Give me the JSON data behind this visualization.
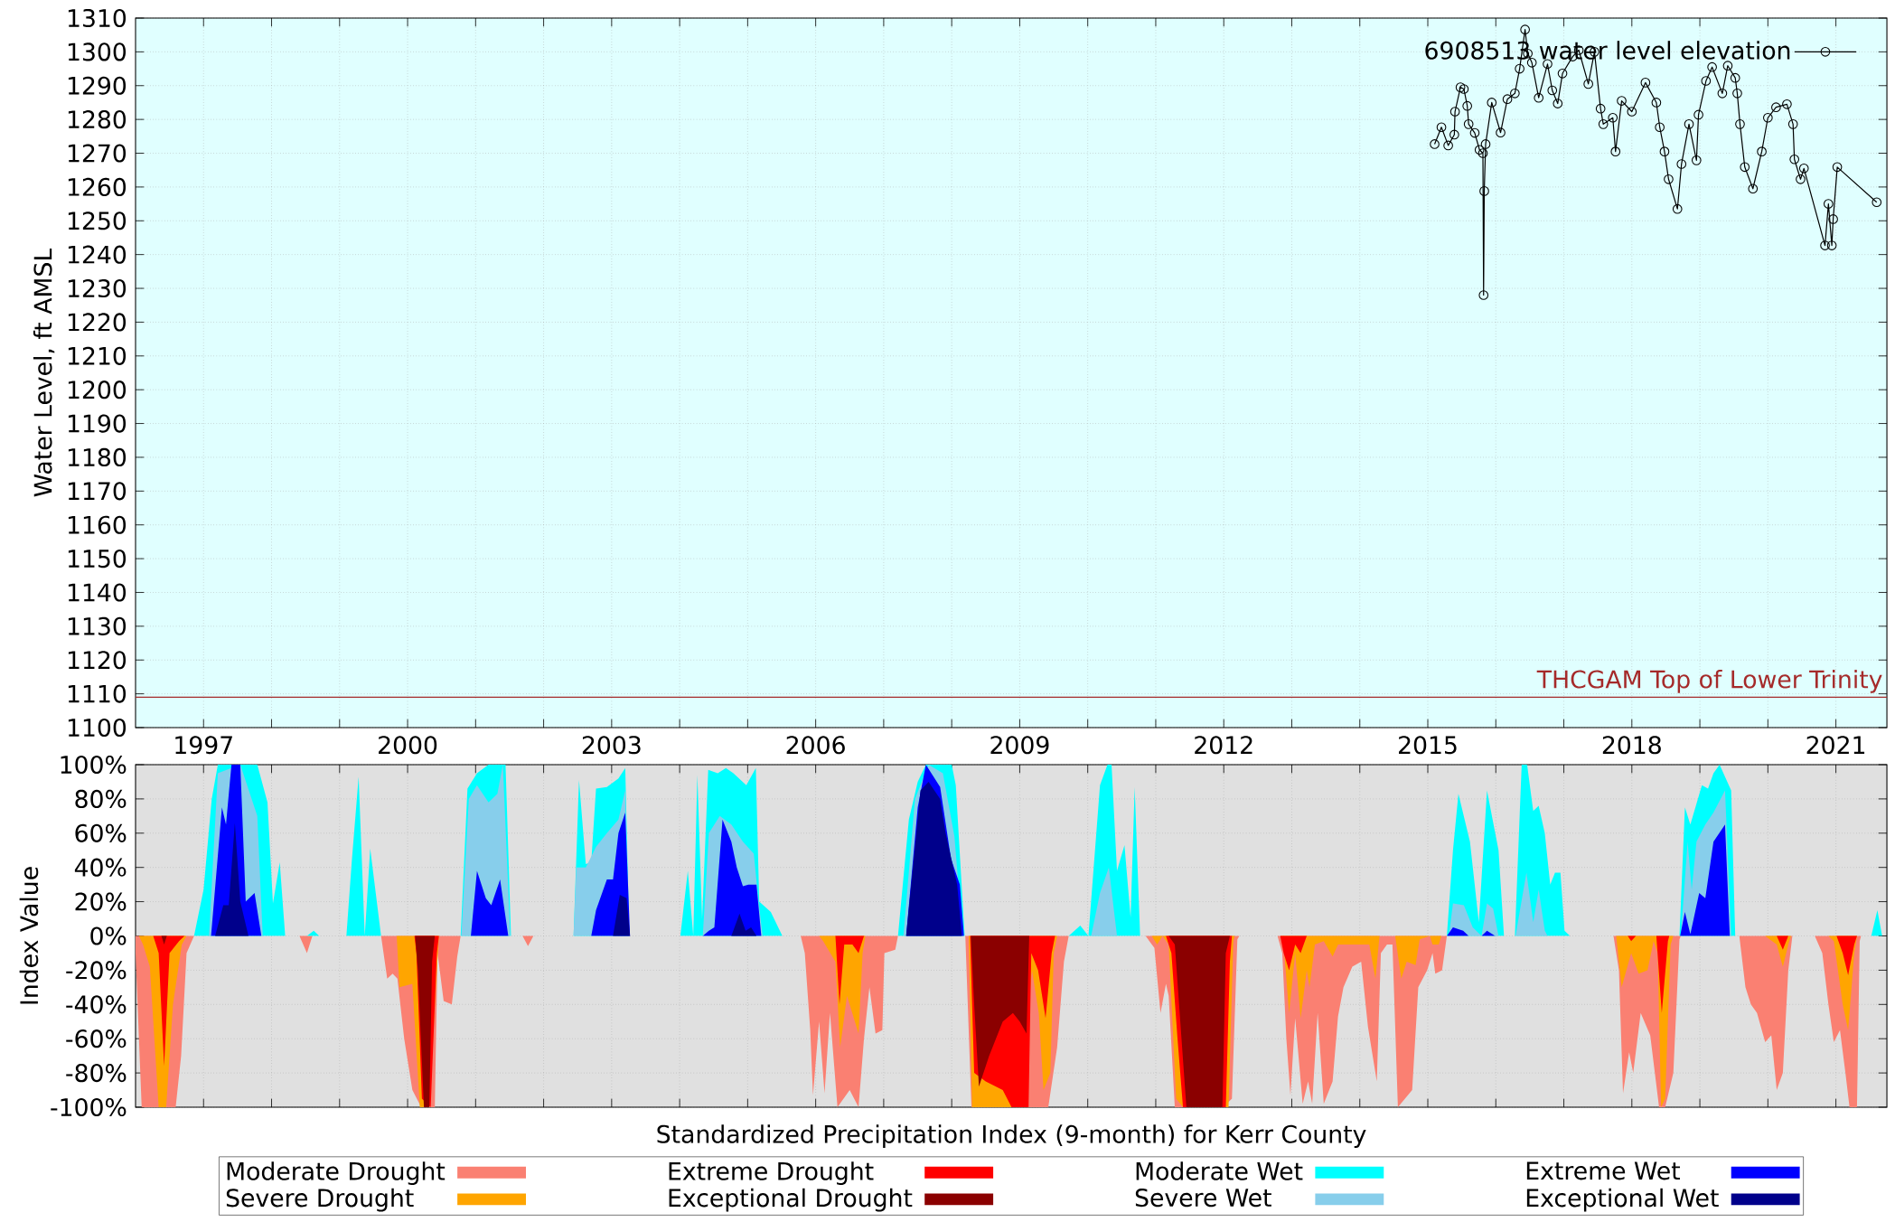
{
  "chart_data": [
    {
      "type": "line",
      "ylabel": "Water Level, ft AMSL",
      "xlim": [
        1996.0,
        2021.75
      ],
      "ylim": [
        1100,
        1310
      ],
      "xticks": [
        1997,
        {
          "value": 1998,
          "label": null
        },
        {
          "value": 1999,
          "label": null
        },
        2000,
        {
          "value": 2001,
          "label": null
        },
        {
          "value": 2002,
          "label": null
        },
        2003,
        {
          "value": 2004,
          "label": null
        },
        {
          "value": 2005,
          "label": null
        },
        2006,
        {
          "value": 2007,
          "label": null
        },
        {
          "value": 2008,
          "label": null
        },
        2009,
        {
          "value": 2010,
          "label": null
        },
        {
          "value": 2011,
          "label": null
        },
        2012,
        {
          "value": 2013,
          "label": null
        },
        {
          "value": 2014,
          "label": null
        },
        2015,
        {
          "value": 2016,
          "label": null
        },
        {
          "value": 2017,
          "label": null
        },
        2018,
        {
          "value": 2019,
          "label": null
        },
        {
          "value": 2020,
          "label": null
        },
        2021
      ],
      "yticks": [
        1100,
        1110,
        1120,
        1130,
        1140,
        1150,
        1160,
        1170,
        1180,
        1190,
        1200,
        1210,
        1220,
        1230,
        1240,
        1250,
        1260,
        1270,
        1280,
        1290,
        1300,
        1310
      ],
      "grid": true,
      "legend": "top right",
      "marker": "circle",
      "line_style": "solid",
      "ref_lines": [
        {
          "axis": "y",
          "value": 1109,
          "label": "THCGAM Top of Lower Trinity",
          "color": "#a52a2a"
        }
      ],
      "series": [
        {
          "name": "6908513 water level elevation",
          "color": "#000000",
          "x": [
            2015.1,
            2015.2,
            2015.3,
            2015.39,
            2015.4,
            2015.48,
            2015.53,
            2015.58,
            2015.6,
            2015.69,
            2015.76,
            2015.81,
            2015.82,
            2015.83,
            2015.85,
            2015.94,
            2016.07,
            2016.17,
            2016.28,
            2016.35,
            2016.43,
            2016.47,
            2016.53,
            2016.63,
            2016.76,
            2016.83,
            2016.91,
            2016.98,
            2017.13,
            2017.22,
            2017.36,
            2017.45,
            2017.54,
            2017.58,
            2017.72,
            2017.76,
            2017.85,
            2018.0,
            2018.2,
            2018.36,
            2018.41,
            2018.48,
            2018.54,
            2018.67,
            2018.73,
            2018.84,
            2018.95,
            2018.98,
            2019.09,
            2019.18,
            2019.33,
            2019.41,
            2019.52,
            2019.55,
            2019.59,
            2019.66,
            2019.78,
            2019.91,
            2020.0,
            2020.12,
            2020.28,
            2020.37,
            2020.39,
            2020.48,
            2020.53,
            2020.84,
            2020.89,
            2020.94,
            2020.96,
            2021.02,
            2021.6
          ],
          "values": [
            1272.7,
            1277.7,
            1272.3,
            1275.5,
            1282.3,
            1289.5,
            1289,
            1284,
            1278.6,
            1276,
            1271,
            1270,
            1228,
            1258.8,
            1272.7,
            1285,
            1276.1,
            1286,
            1287.7,
            1295,
            1306.6,
            1299.5,
            1296.8,
            1286.4,
            1296.4,
            1288.6,
            1284.7,
            1293.6,
            1298.6,
            1300.5,
            1290.5,
            1300,
            1283.2,
            1278.6,
            1280.5,
            1270.5,
            1285.5,
            1282.3,
            1290.9,
            1285,
            1277.7,
            1270.5,
            1262.3,
            1253.5,
            1266.8,
            1278.6,
            1267.9,
            1281.4,
            1291.4,
            1295.5,
            1287.7,
            1295.9,
            1292.3,
            1287.7,
            1278.6,
            1265.9,
            1259.5,
            1270.5,
            1280.5,
            1283.6,
            1284.5,
            1278.6,
            1268.2,
            1262.3,
            1265.5,
            1242.7,
            1255,
            1242.7,
            1250.5,
            1265.9,
            1255.5
          ]
        }
      ]
    },
    {
      "type": "area",
      "xlabel": "Standardized Precipitation Index (9-month) for Kerr County",
      "ylabel": "Index Value",
      "xlim": [
        1996.0,
        2021.75
      ],
      "ylim": [
        -100,
        100
      ],
      "xticks": [
        1997,
        {
          "value": 1998,
          "label": null
        },
        {
          "value": 1999,
          "label": null
        },
        2000,
        {
          "value": 2001,
          "label": null
        },
        {
          "value": 2002,
          "label": null
        },
        2003,
        {
          "value": 2004,
          "label": null
        },
        {
          "value": 2005,
          "label": null
        },
        2006,
        {
          "value": 2007,
          "label": null
        },
        {
          "value": 2008,
          "label": null
        },
        2009,
        {
          "value": 2010,
          "label": null
        },
        {
          "value": 2011,
          "label": null
        },
        2012,
        {
          "value": 2013,
          "label": null
        },
        {
          "value": 2014,
          "label": null
        },
        2015,
        {
          "value": 2016,
          "label": null
        },
        {
          "value": 2017,
          "label": null
        },
        2018,
        {
          "value": 2019,
          "label": null
        },
        {
          "value": 2020,
          "label": null
        },
        2021
      ],
      "yticks": [
        {
          "value": -100,
          "label": "-100%"
        },
        {
          "value": -80,
          "label": "-80%"
        },
        {
          "value": -60,
          "label": "-60%"
        },
        {
          "value": -40,
          "label": "-40%"
        },
        {
          "value": -20,
          "label": "-20%"
        },
        {
          "value": 0,
          "label": "0%"
        },
        {
          "value": 20,
          "label": "20%"
        },
        {
          "value": 40,
          "label": "40%"
        },
        {
          "value": 60,
          "label": "60%"
        },
        {
          "value": 80,
          "label": "80%"
        },
        {
          "value": 100,
          "label": "100%"
        }
      ],
      "tick_labels": "y",
      "grid": true,
      "legend": "bottom",
      "series": [
        {
          "name": "Moderate Drought",
          "color": "#fa8072",
          "x": [
            1996.0,
            1996.09,
            1996.59,
            1996.67,
            1996.75,
            1996.86,
            1998.41,
            1998.52,
            1998.6,
            1999.61,
            1999.7,
            1999.78,
            1999.85,
            1999.95,
            2000.07,
            2000.2,
            2000.4,
            2000.44,
            2000.53,
            2000.65,
            2000.73,
            2000.78,
            2001.69,
            2001.77,
            2001.85,
            2005.78,
            2005.84,
            2005.92,
            2005.96,
            2006.05,
            2006.13,
            2006.21,
            2006.32,
            2006.5,
            2006.63,
            2006.71,
            2006.79,
            2006.88,
            2006.98,
            2007.01,
            2007.17,
            2007.21,
            2008.2,
            2008.29,
            2009.42,
            2009.55,
            2009.65,
            2009.72,
            2010.85,
            2010.98,
            2011.07,
            2011.15,
            2011.19,
            2011.28,
            2011.99,
            2012.12,
            2012.2,
            2012.23,
            2012.79,
            2012.86,
            2012.92,
            2012.98,
            2013.05,
            2013.16,
            2013.24,
            2013.3,
            2013.38,
            2013.47,
            2013.6,
            2013.68,
            2013.76,
            2013.89,
            2014.02,
            2014.12,
            2014.25,
            2014.31,
            2014.4,
            2014.48,
            2014.56,
            2014.77,
            2014.86,
            2014.99,
            2015.07,
            2015.11,
            2015.21,
            2015.28,
            2017.73,
            2017.81,
            2017.87,
            2017.96,
            2018.02,
            2018.13,
            2018.27,
            2018.4,
            2018.49,
            2018.61,
            2018.7,
            2018.72,
            2019.58,
            2019.67,
            2019.75,
            2019.84,
            2019.96,
            2020.05,
            2020.13,
            2020.22,
            2020.3,
            2020.36,
            2020.69,
            2020.8,
            2020.89,
            2020.97,
            2021.06,
            2021.14,
            2021.2,
            2021.31,
            2021.35,
            2021.37
          ],
          "values": [
            -10,
            -100,
            -100,
            -70,
            -10,
            0,
            0,
            -10,
            0,
            0,
            -25,
            -22,
            -25,
            -60,
            -90,
            -100,
            -100,
            -10,
            -38,
            -40,
            -12,
            0,
            0,
            -6,
            0,
            0,
            -10,
            -55,
            -93,
            -50,
            -92,
            -45,
            -100,
            -90,
            -100,
            -60,
            -30,
            -57,
            -55,
            -10,
            -8,
            0,
            0,
            -100,
            -100,
            -65,
            -15,
            0,
            0,
            -7,
            -45,
            -28,
            -35,
            -100,
            -100,
            -95,
            -2,
            0,
            0,
            -10,
            -60,
            -93,
            -48,
            -98,
            -85,
            -98,
            -45,
            -98,
            -85,
            -47,
            -30,
            -18,
            -15,
            -53,
            -85,
            -10,
            -5,
            -5,
            -100,
            -90,
            -30,
            -20,
            -10,
            -22,
            -20,
            0,
            0,
            -20,
            -92,
            -68,
            -80,
            -45,
            -58,
            -100,
            -100,
            -80,
            -2,
            0,
            0,
            -30,
            -40,
            -45,
            -62,
            -58,
            -90,
            -80,
            -20,
            0,
            0,
            -10,
            -40,
            -62,
            -55,
            -80,
            -100,
            -100,
            -3,
            0
          ]
        },
        {
          "name": "Severe Drought",
          "color": "#ffa500",
          "x": [
            1996.05,
            1996.11,
            1996.21,
            1996.34,
            1996.45,
            1996.55,
            1996.68,
            1996.75,
            1999.84,
            1999.88,
            2000.07,
            2000.18,
            2000.32,
            2000.43,
            2000.46,
            2006.05,
            2006.11,
            2006.29,
            2006.36,
            2006.46,
            2006.63,
            2006.69,
            2006.73,
            2008.25,
            2008.3,
            2009.0,
            2009.18,
            2009.28,
            2009.35,
            2009.45,
            2009.5,
            2009.55,
            2010.94,
            2011.02,
            2011.1,
            2011.19,
            2011.3,
            2011.4,
            2012.07,
            2012.14,
            2012.16,
            2012.84,
            2012.88,
            2012.96,
            2013.05,
            2013.13,
            2013.22,
            2013.26,
            2013.34,
            2013.47,
            2013.6,
            2013.68,
            2014.14,
            2014.23,
            2014.29,
            2014.52,
            2014.61,
            2014.69,
            2014.82,
            2014.88,
            2015.03,
            2015.07,
            2015.16,
            2015.2,
            2017.77,
            2017.85,
            2017.99,
            2018.1,
            2018.23,
            2018.32,
            2018.38,
            2018.43,
            2018.49,
            2018.57,
            2018.61,
            2019.96,
            2020.13,
            2020.22,
            2020.3,
            2020.34,
            2020.89,
            2020.97,
            2021.1,
            2021.18,
            2021.27,
            2021.31
          ],
          "values": [
            0,
            -5,
            -18,
            -100,
            -100,
            -40,
            -5,
            0,
            0,
            -30,
            -28,
            -100,
            -100,
            -20,
            0,
            0,
            -3,
            -15,
            -65,
            -35,
            -57,
            -10,
            0,
            0,
            -100,
            -100,
            -20,
            -45,
            -90,
            -80,
            -10,
            0,
            0,
            -5,
            0,
            -5,
            -95,
            -100,
            -100,
            -3,
            0,
            0,
            -5,
            -45,
            -10,
            -48,
            -20,
            -30,
            -5,
            -3,
            -12,
            -5,
            -5,
            -25,
            0,
            0,
            -25,
            -15,
            -17,
            -2,
            0,
            -5,
            -5,
            0,
            0,
            -30,
            -10,
            -22,
            -20,
            -3,
            -10,
            -100,
            -95,
            -5,
            0,
            0,
            -5,
            -18,
            -5,
            0,
            0,
            -3,
            -40,
            -55,
            -10,
            0
          ]
        },
        {
          "name": "Extreme Drought",
          "color": "#ff0000",
          "x": [
            1996.26,
            1996.34,
            1996.42,
            1996.5,
            1996.64,
            1996.72,
            2000.1,
            2000.13,
            2000.21,
            2000.34,
            2000.43,
            2000.46,
            2006.29,
            2006.35,
            2006.42,
            2006.54,
            2006.63,
            2006.71,
            2008.27,
            2008.33,
            2008.5,
            2008.75,
            2008.88,
            2009.13,
            2009.17,
            2009.27,
            2009.38,
            2009.47,
            2009.52,
            2011.15,
            2011.23,
            2011.32,
            2011.4,
            2012.03,
            2012.09,
            2012.12,
            2012.83,
            2012.88,
            2012.96,
            2013.05,
            2013.13,
            2013.22,
            2017.94,
            2017.99,
            2018.06,
            2018.36,
            2018.44,
            2018.53,
            2018.55,
            2020.13,
            2020.22,
            2020.3,
            2021.01,
            2021.1,
            2021.18,
            2021.27,
            2021.31
          ],
          "values": [
            0,
            -10,
            -76,
            -10,
            -3,
            0,
            0,
            -10,
            -95,
            -100,
            -10,
            0,
            0,
            -40,
            -5,
            -5,
            -10,
            0,
            0,
            -80,
            -85,
            -90,
            -100,
            -100,
            -10,
            -20,
            -48,
            -10,
            0,
            0,
            -10,
            -60,
            -100,
            -100,
            -15,
            0,
            0,
            -10,
            -20,
            -5,
            -10,
            0,
            0,
            -3,
            0,
            0,
            -45,
            -3,
            0,
            0,
            -8,
            0,
            0,
            -10,
            -23,
            -5,
            0
          ]
        },
        {
          "name": "Exceptional Drought",
          "color": "#8b0000",
          "x": [
            1996.38,
            1996.42,
            1996.46,
            2000.11,
            2000.15,
            2000.24,
            2000.32,
            2000.36,
            2000.4,
            2008.28,
            2008.33,
            2008.4,
            2008.55,
            2008.75,
            2008.9,
            2009.0,
            2009.1,
            2009.14,
            2011.19,
            2011.28,
            2011.45,
            2011.98,
            2012.03,
            2012.09
          ],
          "values": [
            0,
            -5,
            0,
            0,
            -20,
            -100,
            -100,
            -15,
            0,
            0,
            -40,
            -88,
            -70,
            -50,
            -45,
            -50,
            -57,
            0,
            0,
            -5,
            -100,
            -100,
            -10,
            0
          ]
        },
        {
          "name": "Moderate Wet",
          "color": "#00ffff",
          "x": [
            1996.86,
            1997.0,
            1997.12,
            1997.21,
            1997.79,
            1997.94,
            1998.02,
            1998.12,
            1998.2,
            1998.52,
            1998.62,
            1998.7,
            1999.1,
            1999.18,
            1999.28,
            1999.37,
            1999.45,
            1999.61,
            2000.78,
            2000.88,
            2001.02,
            2001.19,
            2001.44,
            2001.52,
            2002.44,
            2002.52,
            2002.62,
            2002.7,
            2002.77,
            2002.93,
            2003.1,
            2003.2,
            2003.26,
            2004.01,
            2004.12,
            2004.2,
            2004.26,
            2004.33,
            2004.42,
            2004.56,
            2004.68,
            2004.79,
            2004.98,
            2005.12,
            2005.17,
            2005.34,
            2005.51,
            2007.21,
            2007.37,
            2007.5,
            2007.62,
            2008.0,
            2008.06,
            2008.19,
            2009.72,
            2009.89,
            2010.01,
            2010.18,
            2010.29,
            2010.35,
            2010.43,
            2010.54,
            2010.63,
            2010.69,
            2010.77,
            2015.28,
            2015.37,
            2015.45,
            2015.62,
            2015.75,
            2015.87,
            2016.04,
            2016.12,
            2016.28,
            2016.38,
            2016.46,
            2016.55,
            2016.63,
            2016.72,
            2016.8,
            2016.87,
            2016.95,
            2017.01,
            2017.09,
            2018.7,
            2018.78,
            2018.86,
            2019.03,
            2019.12,
            2019.2,
            2019.29,
            2019.46,
            2019.52,
            2021.52,
            2021.61,
            2021.68
          ],
          "values": [
            0,
            27,
            80,
            100,
            100,
            78,
            19,
            43,
            0,
            0,
            3,
            0,
            0,
            44,
            93,
            0,
            51,
            0,
            0,
            86,
            95,
            100,
            100,
            0,
            0,
            91,
            42,
            43,
            86,
            87,
            92,
            98,
            0,
            0,
            38,
            0,
            94,
            10,
            97,
            95,
            98,
            95,
            88,
            98,
            20,
            14,
            0,
            0,
            68,
            90,
            100,
            100,
            88,
            0,
            0,
            6,
            0,
            88,
            100,
            100,
            38,
            53,
            11,
            87,
            0,
            0,
            50,
            83,
            55,
            8,
            85,
            50,
            0,
            0,
            100,
            100,
            73,
            76,
            60,
            30,
            37,
            37,
            3,
            0,
            0,
            75,
            65,
            88,
            86,
            95,
            100,
            85,
            0,
            0,
            15,
            0
          ]
        },
        {
          "name": "Severe Wet",
          "color": "#87ceeb",
          "x": [
            1997.08,
            1997.21,
            1997.54,
            1997.79,
            1997.87,
            2000.79,
            2000.9,
            2001.02,
            2001.19,
            2001.32,
            2001.4,
            2001.51,
            2002.44,
            2002.48,
            2002.62,
            2002.77,
            2002.93,
            2003.1,
            2003.2,
            2003.25,
            2004.34,
            2004.43,
            2004.59,
            2004.76,
            2004.93,
            2005.09,
            2005.16,
            2005.22,
            2007.29,
            2007.46,
            2007.66,
            2007.87,
            2008.04,
            2008.16,
            2010.05,
            2010.18,
            2010.31,
            2010.43,
            2015.31,
            2015.37,
            2015.53,
            2015.66,
            2015.79,
            2015.87,
            2015.96,
            2016.04,
            2016.29,
            2016.45,
            2016.55,
            2016.63,
            2016.72,
            2016.76,
            2018.72,
            2018.82,
            2018.88,
            2018.95,
            2019.08,
            2019.2,
            2019.37,
            2019.46
          ],
          "values": [
            0,
            95,
            100,
            70,
            0,
            0,
            80,
            88,
            78,
            83,
            100,
            0,
            0,
            40,
            40,
            52,
            60,
            68,
            85,
            0,
            0,
            60,
            70,
            65,
            55,
            48,
            20,
            0,
            0,
            80,
            100,
            95,
            58,
            0,
            0,
            25,
            40,
            0,
            0,
            19,
            18,
            5,
            0,
            19,
            16,
            0,
            0,
            37,
            8,
            27,
            3,
            0,
            0,
            55,
            27,
            55,
            65,
            72,
            85,
            0
          ]
        },
        {
          "name": "Extreme Wet",
          "color": "#0000ff",
          "x": [
            1997.11,
            1997.27,
            1997.33,
            1997.41,
            1997.54,
            1997.62,
            1997.75,
            1997.85,
            2000.93,
            2001.02,
            2001.15,
            2001.23,
            2001.36,
            2001.48,
            2002.7,
            2002.77,
            2002.93,
            2003.02,
            2003.1,
            2003.2,
            2003.27,
            2004.34,
            2004.43,
            2004.51,
            2004.63,
            2004.76,
            2004.84,
            2004.93,
            2005.01,
            2005.13,
            2005.2,
            2007.33,
            2007.5,
            2007.62,
            2007.83,
            2007.99,
            2008.12,
            2008.18,
            2015.28,
            2015.37,
            2015.52,
            2015.6,
            2015.79,
            2015.87,
            2015.99,
            2018.71,
            2018.78,
            2018.86,
            2018.99,
            2019.08,
            2019.2,
            2019.37,
            2019.44
          ],
          "values": [
            0,
            75,
            65,
            100,
            100,
            20,
            25,
            0,
            0,
            38,
            22,
            18,
            33,
            0,
            0,
            15,
            33,
            33,
            60,
            72,
            0,
            0,
            3,
            5,
            68,
            55,
            40,
            29,
            30,
            30,
            0,
            0,
            75,
            100,
            87,
            45,
            30,
            0,
            0,
            5,
            3,
            0,
            0,
            3,
            0,
            0,
            14,
            1,
            25,
            22,
            55,
            65,
            0
          ]
        },
        {
          "name": "Exceptional Wet",
          "color": "#00008b",
          "x": [
            1997.17,
            1997.29,
            1997.37,
            1997.46,
            1997.54,
            1997.66,
            2003.02,
            2003.12,
            2003.22,
            2003.27,
            2004.76,
            2004.88,
            2004.97,
            2005.05,
            2005.13,
            2007.33,
            2007.54,
            2007.66,
            2007.83,
            2007.91,
            2008.08,
            2008.15
          ],
          "values": [
            0,
            18,
            18,
            66,
            20,
            0,
            0,
            24,
            22,
            0,
            0,
            13,
            3,
            5,
            0,
            0,
            85,
            90,
            80,
            60,
            30,
            0
          ]
        }
      ]
    }
  ]
}
